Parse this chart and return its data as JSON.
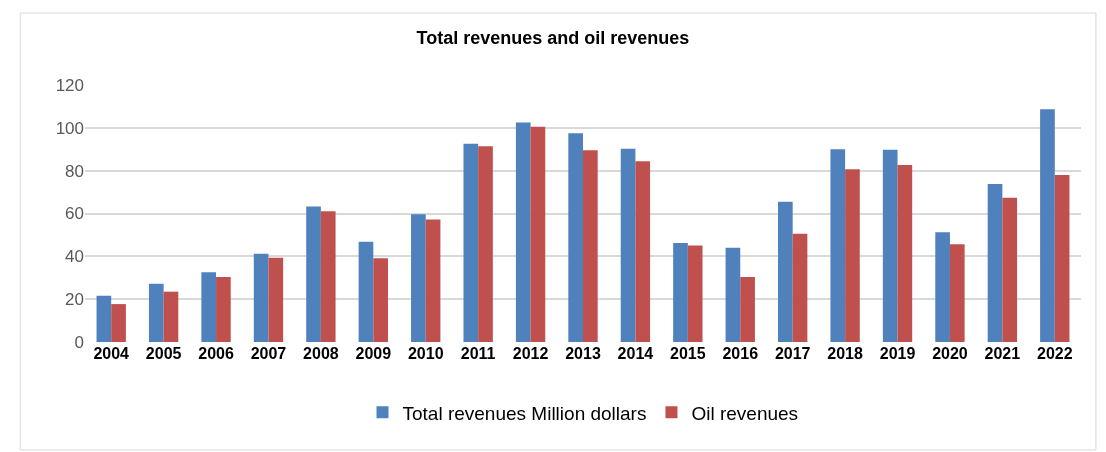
{
  "chart_data": {
    "type": "bar",
    "title": "Total revenues and oil revenues",
    "categories": [
      "2004",
      "2005",
      "2006",
      "2007",
      "2008",
      "2009",
      "2010",
      "2011",
      "2012",
      "2013",
      "2014",
      "2015",
      "2016",
      "2017",
      "2018",
      "2019",
      "2020",
      "2021",
      "2022"
    ],
    "series": [
      {
        "name": "Total revenues Million dollars",
        "color": "#4f81bd",
        "values": [
          21.6,
          27.2,
          32.6,
          41.2,
          63.3,
          46.8,
          59.6,
          92.6,
          102.5,
          97.5,
          90.2,
          46.2,
          44.0,
          65.5,
          90.0,
          89.8,
          51.3,
          73.8,
          108.7
        ]
      },
      {
        "name": "Oil revenues",
        "color": "#c0504d",
        "values": [
          17.7,
          23.5,
          30.4,
          39.3,
          61.1,
          39.1,
          57.2,
          91.4,
          100.5,
          89.5,
          84.4,
          45.1,
          30.4,
          50.5,
          80.7,
          82.7,
          45.6,
          67.3,
          78.0
        ]
      }
    ],
    "ylim": [
      0,
      120
    ],
    "yticks": [
      0,
      20,
      40,
      60,
      80,
      100,
      120
    ],
    "grid": "y",
    "legend": "bottom"
  }
}
